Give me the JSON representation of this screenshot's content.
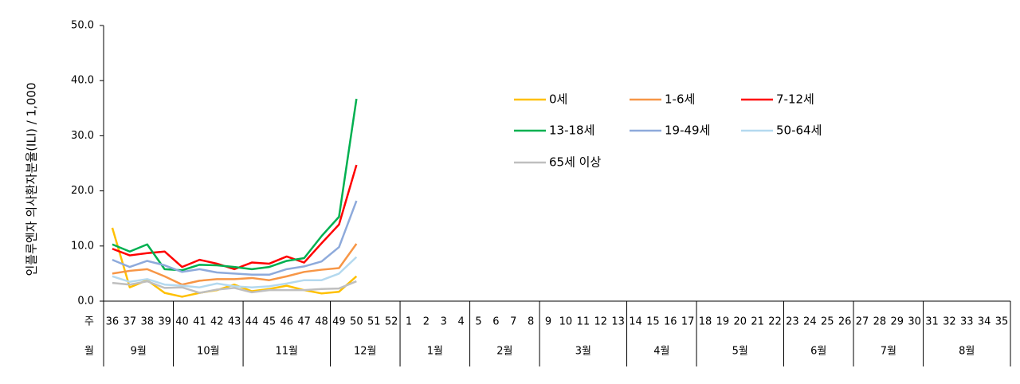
{
  "chart_data": {
    "type": "line",
    "y_label": "인플루엔자 의사환자분율(ILI) / 1,000",
    "x_label_week": "주",
    "x_label_month": "월",
    "months": [
      {
        "label": "9월",
        "weeks": [
          "36",
          "37",
          "38",
          "39"
        ]
      },
      {
        "label": "10월",
        "weeks": [
          "40",
          "41",
          "42",
          "43"
        ]
      },
      {
        "label": "11월",
        "weeks": [
          "44",
          "45",
          "46",
          "47",
          "48"
        ]
      },
      {
        "label": "12월",
        "weeks": [
          "49",
          "50",
          "51",
          "52"
        ]
      },
      {
        "label": "1월",
        "weeks": [
          "1",
          "2",
          "3",
          "4"
        ]
      },
      {
        "label": "2월",
        "weeks": [
          "5",
          "6",
          "7",
          "8"
        ]
      },
      {
        "label": "3월",
        "weeks": [
          "9",
          "10",
          "11",
          "12",
          "13"
        ]
      },
      {
        "label": "4월",
        "weeks": [
          "14",
          "15",
          "16",
          "17"
        ]
      },
      {
        "label": "5월",
        "weeks": [
          "18",
          "19",
          "20",
          "21",
          "22"
        ]
      },
      {
        "label": "6월",
        "weeks": [
          "23",
          "24",
          "25",
          "26"
        ]
      },
      {
        "label": "7월",
        "weeks": [
          "27",
          "28",
          "29",
          "30"
        ]
      },
      {
        "label": "8월",
        "weeks": [
          "31",
          "32",
          "33",
          "34",
          "35"
        ]
      }
    ],
    "ylim": [
      0,
      50
    ],
    "yticks": [
      {
        "value": 0,
        "label": "0.0"
      },
      {
        "value": 10,
        "label": "10.0"
      },
      {
        "value": 20,
        "label": "20.0"
      },
      {
        "value": 30,
        "label": "30.0"
      },
      {
        "value": 40,
        "label": "40.0"
      },
      {
        "value": 50,
        "label": "50.0"
      }
    ],
    "series": [
      {
        "name": "0세",
        "color": "#ffc000",
        "values": [
          13.3,
          2.5,
          3.8,
          1.5,
          0.8,
          1.5,
          2.0,
          3.0,
          1.8,
          2.2,
          2.8,
          2.0,
          1.4,
          1.7,
          4.5,
          null,
          null,
          null,
          null,
          null,
          null,
          null,
          null,
          null,
          null,
          null,
          null,
          null,
          null,
          null,
          null,
          null,
          null,
          null,
          null,
          null,
          null,
          null,
          null,
          null,
          null,
          null,
          null,
          null,
          null,
          null,
          null,
          null,
          null,
          null,
          null,
          null
        ]
      },
      {
        "name": "1-6세",
        "color": "#f79646",
        "values": [
          5.0,
          5.5,
          5.8,
          4.5,
          3.0,
          3.7,
          4.0,
          4.0,
          4.2,
          3.8,
          4.5,
          5.3,
          5.7,
          6.0,
          10.4,
          null,
          null,
          null,
          null,
          null,
          null,
          null,
          null,
          null,
          null,
          null,
          null,
          null,
          null,
          null,
          null,
          null,
          null,
          null,
          null,
          null,
          null,
          null,
          null,
          null,
          null,
          null,
          null,
          null,
          null,
          null,
          null,
          null,
          null,
          null,
          null,
          null
        ]
      },
      {
        "name": "7-12세",
        "color": "#ff0000",
        "values": [
          9.5,
          8.3,
          8.7,
          9.0,
          6.2,
          7.5,
          6.8,
          5.8,
          7.0,
          6.8,
          8.1,
          7.0,
          10.5,
          13.9,
          24.7,
          null,
          null,
          null,
          null,
          null,
          null,
          null,
          null,
          null,
          null,
          null,
          null,
          null,
          null,
          null,
          null,
          null,
          null,
          null,
          null,
          null,
          null,
          null,
          null,
          null,
          null,
          null,
          null,
          null,
          null,
          null,
          null,
          null,
          null,
          null,
          null,
          null
        ]
      },
      {
        "name": "13-18세",
        "color": "#00b050",
        "values": [
          10.3,
          9.0,
          10.3,
          5.8,
          5.6,
          6.6,
          6.5,
          6.2,
          5.8,
          6.2,
          7.3,
          7.8,
          11.8,
          15.3,
          36.7,
          null,
          null,
          null,
          null,
          null,
          null,
          null,
          null,
          null,
          null,
          null,
          null,
          null,
          null,
          null,
          null,
          null,
          null,
          null,
          null,
          null,
          null,
          null,
          null,
          null,
          null,
          null,
          null,
          null,
          null,
          null,
          null,
          null,
          null,
          null,
          null,
          null
        ]
      },
      {
        "name": "19-49세",
        "color": "#8eaadb",
        "values": [
          7.5,
          6.2,
          7.3,
          6.5,
          5.3,
          5.8,
          5.2,
          5.0,
          4.8,
          4.8,
          5.8,
          6.3,
          7.2,
          9.8,
          18.2,
          null,
          null,
          null,
          null,
          null,
          null,
          null,
          null,
          null,
          null,
          null,
          null,
          null,
          null,
          null,
          null,
          null,
          null,
          null,
          null,
          null,
          null,
          null,
          null,
          null,
          null,
          null,
          null,
          null,
          null,
          null,
          null,
          null,
          null,
          null,
          null,
          null
        ]
      },
      {
        "name": "50-64세",
        "color": "#b4d9ef",
        "values": [
          4.5,
          3.5,
          4.0,
          3.0,
          2.8,
          2.5,
          3.2,
          2.7,
          2.5,
          2.7,
          3.2,
          3.8,
          3.8,
          5.0,
          8.0,
          null,
          null,
          null,
          null,
          null,
          null,
          null,
          null,
          null,
          null,
          null,
          null,
          null,
          null,
          null,
          null,
          null,
          null,
          null,
          null,
          null,
          null,
          null,
          null,
          null,
          null,
          null,
          null,
          null,
          null,
          null,
          null,
          null,
          null,
          null,
          null,
          null
        ]
      },
      {
        "name": "65세 이상",
        "color": "#bfbfbf",
        "values": [
          3.3,
          3.0,
          3.6,
          2.4,
          2.5,
          1.5,
          2.1,
          2.4,
          1.6,
          2.0,
          2.0,
          2.0,
          2.2,
          2.3,
          3.6,
          null,
          null,
          null,
          null,
          null,
          null,
          null,
          null,
          null,
          null,
          null,
          null,
          null,
          null,
          null,
          null,
          null,
          null,
          null,
          null,
          null,
          null,
          null,
          null,
          null,
          null,
          null,
          null,
          null,
          null,
          null,
          null,
          null,
          null,
          null,
          null,
          null
        ]
      }
    ]
  }
}
